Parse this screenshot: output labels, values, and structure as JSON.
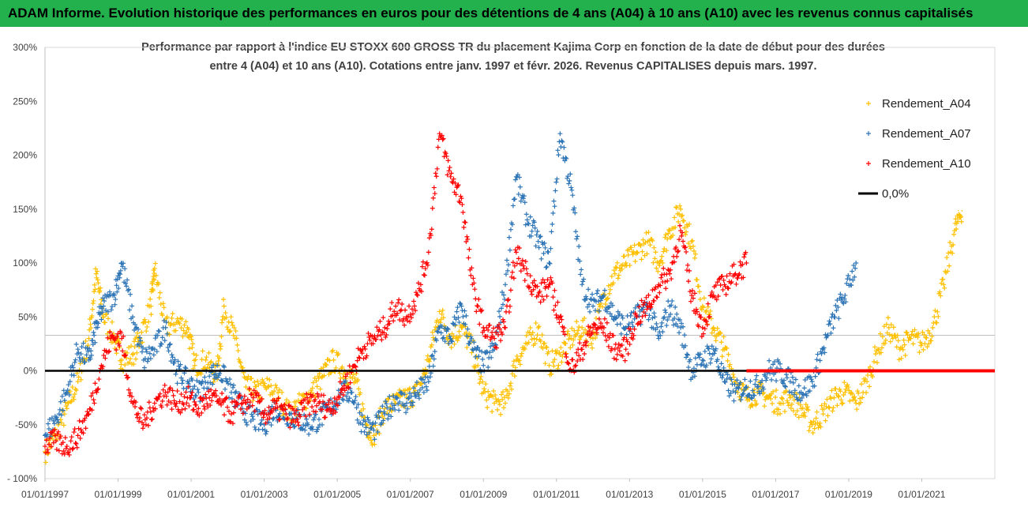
{
  "banner": {
    "title": "ADAM Informe. Evolution historique des performances en euros pour des détentions de 4 ans (A04) à 10 ans (A10) avec les revenus connus capitalisés"
  },
  "chart_data": {
    "type": "scatter",
    "title_line1": "Performance par rapport à l'indice EU STOXX 600 GROSS TR  du placement Kajima Corp en fonction de la date de début pour des durées",
    "title_line2": "entre 4 (A04) et 10 ans (A10). Cotations entre janv. 1997 et févr. 2026. Revenus CAPITALISES depuis mars. 1997.",
    "xlabel": "",
    "ylabel": "",
    "xlim": [
      1997.0,
      2023.0
    ],
    "ylim": [
      -100,
      300
    ],
    "y_ticks": [
      300,
      250,
      200,
      150,
      100,
      50,
      0,
      -50,
      -100
    ],
    "y_tick_labels": [
      "300%",
      "250%",
      "200%",
      "150%",
      "100%",
      "50%",
      "0%",
      "-50%",
      "- 100%"
    ],
    "x_ticks": [
      1997,
      1999,
      2001,
      2003,
      2005,
      2007,
      2009,
      2011,
      2013,
      2015,
      2017,
      2019,
      2021
    ],
    "x_tick_labels": [
      "01/01/1997",
      "01/01/1999",
      "01/01/2001",
      "01/01/2003",
      "01/01/2005",
      "01/01/2007",
      "01/01/2009",
      "01/01/2011",
      "01/01/2013",
      "01/01/2015",
      "01/01/2017",
      "01/01/2019",
      "01/01/2021"
    ],
    "legend_position": "right",
    "colors": {
      "A04": "#ffc000",
      "A07": "#2e75b6",
      "A10": "#ff0000",
      "zero": "#000000"
    },
    "series": [
      {
        "name": "Rendement_A04",
        "key": "A04",
        "x": [
          1997.0,
          1997.3,
          1997.6,
          1997.9,
          1998.2,
          1998.4,
          1998.6,
          1998.9,
          1999.1,
          1999.4,
          1999.6,
          1999.9,
          2000.0,
          2000.3,
          2000.6,
          2000.9,
          2001.1,
          2001.4,
          2001.7,
          2001.9,
          2002.2,
          2002.5,
          2002.8,
          2003.1,
          2003.4,
          2003.7,
          2004.0,
          2004.3,
          2004.6,
          2004.9,
          2005.2,
          2005.5,
          2005.8,
          2006.0,
          2006.3,
          2006.6,
          2006.9,
          2007.2,
          2007.5,
          2007.8,
          2008.1,
          2008.4,
          2008.7,
          2009.0,
          2009.3,
          2009.6,
          2009.9,
          2010.2,
          2010.5,
          2010.8,
          2011.1,
          2011.4,
          2011.7,
          2012.0,
          2012.3,
          2012.6,
          2012.9,
          2013.2,
          2013.5,
          2013.8,
          2014.1,
          2014.4,
          2014.7,
          2015.0,
          2015.3,
          2015.6,
          2015.9,
          2016.2,
          2016.5,
          2016.8,
          2017.1,
          2017.4,
          2017.7,
          2018.0,
          2018.3,
          2018.6,
          2018.9,
          2019.2,
          2019.5,
          2019.8,
          2020.1,
          2020.4,
          2020.7,
          2021.0,
          2021.3,
          2021.6,
          2021.9,
          2022.1
        ],
        "y": [
          -75,
          -60,
          -35,
          -10,
          30,
          90,
          50,
          30,
          10,
          15,
          30,
          60,
          95,
          40,
          45,
          40,
          5,
          10,
          -5,
          60,
          30,
          -15,
          -20,
          -15,
          -25,
          -40,
          -30,
          -20,
          -5,
          10,
          0,
          -10,
          -50,
          -60,
          -35,
          -30,
          -25,
          -20,
          10,
          55,
          30,
          40,
          20,
          -20,
          -30,
          -30,
          10,
          25,
          40,
          5,
          15,
          30,
          40,
          30,
          70,
          90,
          100,
          110,
          120,
          100,
          130,
          150,
          120,
          60,
          40,
          20,
          -10,
          -25,
          -20,
          -25,
          -30,
          -25,
          -35,
          -50,
          -40,
          -25,
          -20,
          -30,
          -10,
          20,
          40,
          20,
          30,
          25,
          40,
          80,
          130,
          150
        ]
      },
      {
        "name": "Rendement_A07",
        "key": "A07",
        "x": [
          1997.0,
          1997.3,
          1997.6,
          1997.9,
          1998.2,
          1998.4,
          1998.6,
          1998.9,
          1999.1,
          1999.4,
          1999.7,
          2000.0,
          2000.3,
          2000.6,
          2000.9,
          2001.2,
          2001.5,
          2001.8,
          2002.1,
          2002.4,
          2002.7,
          2003.0,
          2003.3,
          2003.6,
          2003.9,
          2004.2,
          2004.5,
          2004.8,
          2005.1,
          2005.4,
          2005.7,
          2006.0,
          2006.3,
          2006.6,
          2006.9,
          2007.2,
          2007.5,
          2007.8,
          2008.1,
          2008.4,
          2008.7,
          2009.0,
          2009.3,
          2009.6,
          2009.9,
          2010.2,
          2010.5,
          2010.8,
          2011.1,
          2011.4,
          2011.7,
          2012.0,
          2012.3,
          2012.6,
          2012.9,
          2013.2,
          2013.5,
          2013.8,
          2014.1,
          2014.4,
          2014.7,
          2015.0,
          2015.3,
          2015.6,
          2015.9,
          2016.2,
          2016.5,
          2016.8,
          2017.1,
          2017.4,
          2017.7,
          2018.0,
          2018.3,
          2018.6,
          2018.9,
          2019.2
        ],
        "y": [
          -60,
          -45,
          -20,
          20,
          10,
          40,
          60,
          70,
          100,
          50,
          10,
          20,
          40,
          0,
          -10,
          -20,
          -5,
          0,
          -20,
          -35,
          -45,
          -50,
          -35,
          -40,
          -45,
          -50,
          -45,
          -35,
          -20,
          -20,
          -50,
          -55,
          -40,
          -25,
          -30,
          -20,
          -10,
          40,
          30,
          60,
          20,
          5,
          20,
          80,
          180,
          140,
          120,
          100,
          220,
          170,
          80,
          60,
          70,
          50,
          40,
          50,
          60,
          30,
          60,
          40,
          0,
          10,
          20,
          -10,
          -20,
          -15,
          -15,
          0,
          0,
          -10,
          -20,
          -10,
          20,
          50,
          70,
          100
        ]
      },
      {
        "name": "Rendement_A10",
        "key": "A10",
        "x": [
          1997.0,
          1997.3,
          1997.6,
          1997.9,
          1998.2,
          1998.5,
          1998.8,
          1999.1,
          1999.4,
          1999.7,
          2000.0,
          2000.3,
          2000.6,
          2000.9,
          2001.2,
          2001.5,
          2001.8,
          2002.1,
          2002.4,
          2002.7,
          2003.0,
          2003.3,
          2003.6,
          2003.9,
          2004.2,
          2004.5,
          2004.8,
          2005.1,
          2005.4,
          2005.7,
          2006.0,
          2006.3,
          2006.6,
          2006.9,
          2007.2,
          2007.5,
          2007.8,
          2008.1,
          2008.4,
          2008.7,
          2009.0,
          2009.3,
          2009.6,
          2009.9,
          2010.2,
          2010.5,
          2010.8,
          2011.1,
          2011.4,
          2011.7,
          2012.0,
          2012.3,
          2012.6,
          2012.9,
          2013.2,
          2013.5,
          2013.8,
          2014.1,
          2014.4,
          2014.7,
          2015.0,
          2015.3,
          2015.6,
          2015.9,
          2016.2
        ],
        "y": [
          -70,
          -65,
          -70,
          -60,
          -40,
          0,
          30,
          30,
          -30,
          -50,
          -30,
          -20,
          -30,
          -25,
          -35,
          -25,
          -30,
          -40,
          -30,
          -25,
          -40,
          -35,
          -40,
          -45,
          -30,
          -30,
          -35,
          -20,
          0,
          20,
          30,
          40,
          60,
          50,
          70,
          110,
          220,
          180,
          160,
          80,
          40,
          30,
          40,
          110,
          90,
          70,
          80,
          50,
          0,
          20,
          40,
          40,
          20,
          20,
          50,
          60,
          80,
          90,
          130,
          70,
          40,
          70,
          80,
          90,
          100
        ]
      }
    ],
    "reference_line": {
      "name": "0,0%",
      "y": 0
    },
    "red_zero_run": {
      "x_start": 2016.2,
      "x_end": 2023.0,
      "y": 0
    }
  }
}
